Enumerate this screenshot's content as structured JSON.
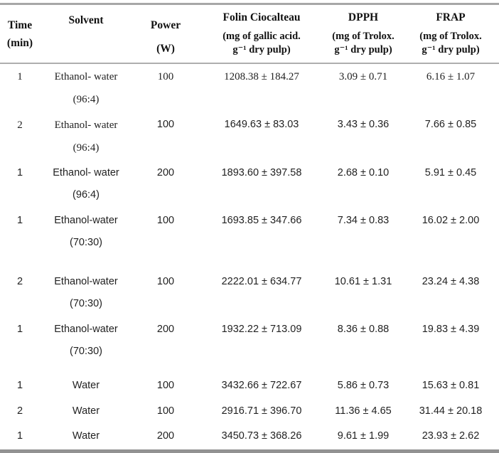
{
  "colors": {
    "rule_top": "#a7a7a7",
    "rule_header": "#aeaeae",
    "rule_bottom": "#929292",
    "text": "#1f1f1f",
    "background": "#ffffff"
  },
  "table": {
    "columns": {
      "time": {
        "title": "Time",
        "subtitle": "(min)"
      },
      "solvent": {
        "title": "Solvent"
      },
      "power": {
        "title": "Power",
        "subtitle": "(W)"
      },
      "folin": {
        "title": "Folin Ciocalteau",
        "unit_line1": "(mg of gallic acid.",
        "unit_line2": "g⁻¹ dry pulp)"
      },
      "dpph": {
        "title": "DPPH",
        "unit_line1": "(mg of Trolox.",
        "unit_line2": "g⁻¹ dry pulp)"
      },
      "frap": {
        "title": "FRAP",
        "unit_line1": "(mg of Trolox.",
        "unit_line2": "g⁻¹ dry pulp)"
      }
    },
    "rows": [
      {
        "time": "1",
        "solvent": "Ethanol- water",
        "ratio": "(96:4)",
        "power": "100",
        "folin": "1208.38 ± 184.27",
        "dpph": "3.09 ± 0.71",
        "frap": "6.16 ± 1.07"
      },
      {
        "time": "2",
        "solvent": "Ethanol- water",
        "ratio": "(96:4)",
        "power": "100",
        "folin": "1649.63 ± 83.03",
        "dpph": "3.43 ± 0.36",
        "frap": "7.66 ± 0.85"
      },
      {
        "time": "1",
        "solvent": "Ethanol- water",
        "ratio": "(96:4)",
        "power": "200",
        "folin": "1893.60 ± 397.58",
        "dpph": "2.68 ± 0.10",
        "frap": "5.91 ± 0.45"
      },
      {
        "time": "1",
        "solvent": "Ethanol-water",
        "ratio": "(70:30)",
        "power": "100",
        "folin": "1693.85 ± 347.66",
        "dpph": "7.34 ± 0.83",
        "frap": "16.02 ± 2.00"
      },
      {
        "time": "2",
        "solvent": "Ethanol-water",
        "ratio": "(70:30)",
        "power": "100",
        "folin": "2222.01 ± 634.77",
        "dpph": "10.61 ± 1.31",
        "frap": "23.24 ± 4.38"
      },
      {
        "time": "1",
        "solvent": "Ethanol-water",
        "ratio": "(70:30)",
        "power": "200",
        "folin": "1932.22 ± 713.09",
        "dpph": "8.36 ± 0.88",
        "frap": "19.83 ± 4.39"
      },
      {
        "time": "1",
        "solvent": "Water",
        "ratio": "",
        "power": "100",
        "folin": "3432.66 ± 722.67",
        "dpph": "5.86 ± 0.73",
        "frap": "15.63 ± 0.81"
      },
      {
        "time": "2",
        "solvent": "Water",
        "ratio": "",
        "power": "100",
        "folin": "2916.71 ± 396.70",
        "dpph": "11.36 ± 4.65",
        "frap": "31.44 ± 20.18"
      },
      {
        "time": "1",
        "solvent": "Water",
        "ratio": "",
        "power": "200",
        "folin": "3450.73 ± 368.26",
        "dpph": "9.61 ± 1.99",
        "frap": "23.93 ± 2.62"
      }
    ]
  }
}
